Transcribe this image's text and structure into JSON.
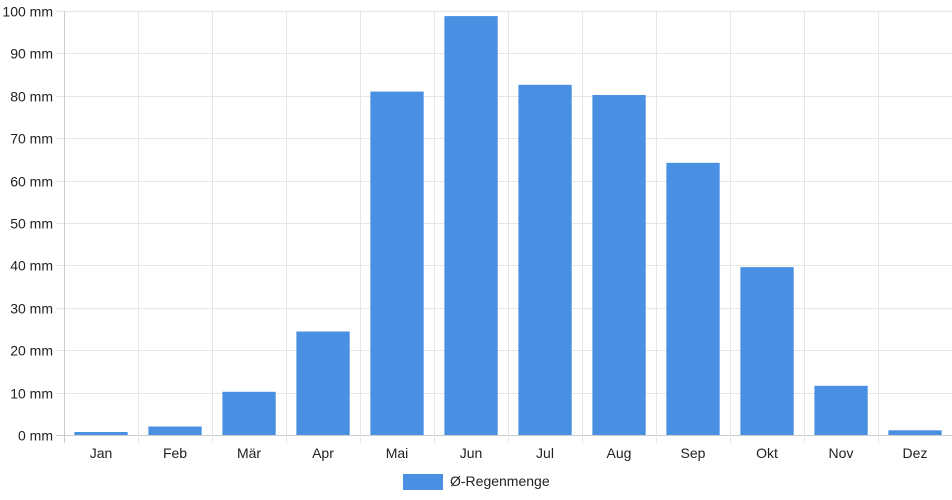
{
  "chart_data": {
    "type": "bar",
    "categories": [
      "Jan",
      "Feb",
      "Mär",
      "Apr",
      "Mai",
      "Jun",
      "Jul",
      "Aug",
      "Sep",
      "Okt",
      "Nov",
      "Dez"
    ],
    "series": [
      {
        "name": "Ø-Regenmenge",
        "color": "#4a90e2",
        "values": [
          0.7,
          2,
          10.2,
          24.4,
          81,
          98.8,
          82.6,
          80.2,
          64.2,
          39.6,
          11.6,
          1.1
        ]
      }
    ],
    "y_unit": "mm",
    "ylim": [
      0,
      100
    ],
    "y_ticks": [
      0,
      10,
      20,
      30,
      40,
      50,
      60,
      70,
      80,
      90,
      100
    ],
    "y_tick_labels": [
      "0 mm",
      "10 mm",
      "20 mm",
      "30 mm",
      "40 mm",
      "50 mm",
      "60 mm",
      "70 mm",
      "80 mm",
      "90 mm",
      "100 mm"
    ],
    "grid": true,
    "legend_position": "bottom",
    "title": "",
    "xlabel": "",
    "ylabel": ""
  }
}
